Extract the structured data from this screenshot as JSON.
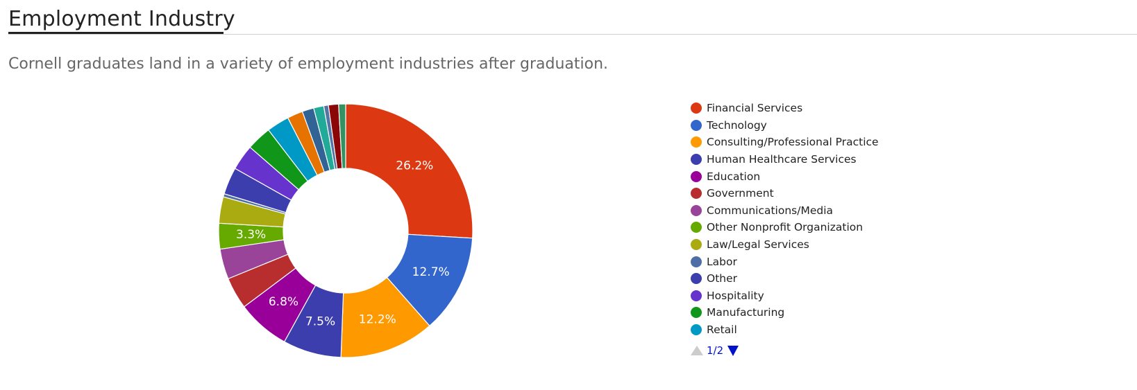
{
  "header": {
    "title": "Employment Industry",
    "subtitle": "Cornell graduates land in a variety of employment industries after graduation."
  },
  "chart_data": {
    "type": "pie",
    "donut": true,
    "legend_position": "right",
    "slices": [
      {
        "label": "Financial Services",
        "value": 26.2,
        "color": "#dc3912",
        "data_label": "26.2%"
      },
      {
        "label": "Technology",
        "value": 12.7,
        "color": "#3366cc",
        "data_label": "12.7%"
      },
      {
        "label": "Consulting/Professional Practice",
        "value": 12.2,
        "color": "#ff9900",
        "data_label": "12.2%"
      },
      {
        "label": "Human Healthcare Services",
        "value": 7.5,
        "color": "#3b3eac",
        "data_label": "7.5%"
      },
      {
        "label": "Education",
        "value": 6.8,
        "color": "#990099",
        "data_label": "6.8%"
      },
      {
        "label": "Government",
        "value": 4.1,
        "color": "#b82e2e",
        "data_label": ""
      },
      {
        "label": "Communications/Media",
        "value": 3.9,
        "color": "#994499",
        "data_label": ""
      },
      {
        "label": "Other Nonprofit Organization",
        "value": 3.3,
        "color": "#66aa00",
        "data_label": "3.3%"
      },
      {
        "label": "Law/Legal Services",
        "value": 3.4,
        "color": "#aaaa11",
        "data_label": ""
      },
      {
        "label": "Labor",
        "value": 0.4,
        "color": "#4e6fa6",
        "data_label": ""
      },
      {
        "label": "Other",
        "value": 3.5,
        "color": "#3b3eac",
        "data_label": ""
      },
      {
        "label": "Hospitality",
        "value": 3.3,
        "color": "#6633cc",
        "data_label": ""
      },
      {
        "label": "Manufacturing",
        "value": 3.2,
        "color": "#109618",
        "data_label": ""
      },
      {
        "label": "Retail",
        "value": 2.9,
        "color": "#0099c6",
        "data_label": ""
      },
      {
        "label": "",
        "value": 2.0,
        "color": "#e67300",
        "data_label": ""
      },
      {
        "label": "",
        "value": 1.5,
        "color": "#316395",
        "data_label": ""
      },
      {
        "label": "",
        "value": 1.3,
        "color": "#22aa99",
        "data_label": ""
      },
      {
        "label": "",
        "value": 0.6,
        "color": "#5574a6",
        "data_label": ""
      },
      {
        "label": "",
        "value": 1.3,
        "color": "#8b0707",
        "data_label": ""
      },
      {
        "label": "",
        "value": 0.9,
        "color": "#329262",
        "data_label": ""
      }
    ]
  },
  "legend": {
    "items": [
      {
        "label": "Financial Services",
        "color": "#dc3912"
      },
      {
        "label": "Technology",
        "color": "#3366cc"
      },
      {
        "label": "Consulting/Professional Practice",
        "color": "#ff9900"
      },
      {
        "label": "Human Healthcare Services",
        "color": "#3b3eac"
      },
      {
        "label": "Education",
        "color": "#990099"
      },
      {
        "label": "Government",
        "color": "#b82e2e"
      },
      {
        "label": "Communications/Media",
        "color": "#994499"
      },
      {
        "label": "Other Nonprofit Organization",
        "color": "#66aa00"
      },
      {
        "label": "Law/Legal Services",
        "color": "#aaaa11"
      },
      {
        "label": "Labor",
        "color": "#4e6fa6"
      },
      {
        "label": "Other",
        "color": "#3b3eac"
      },
      {
        "label": "Hospitality",
        "color": "#6633cc"
      },
      {
        "label": "Manufacturing",
        "color": "#109618"
      },
      {
        "label": "Retail",
        "color": "#0099c6"
      }
    ],
    "page_indicator": "1/2"
  }
}
